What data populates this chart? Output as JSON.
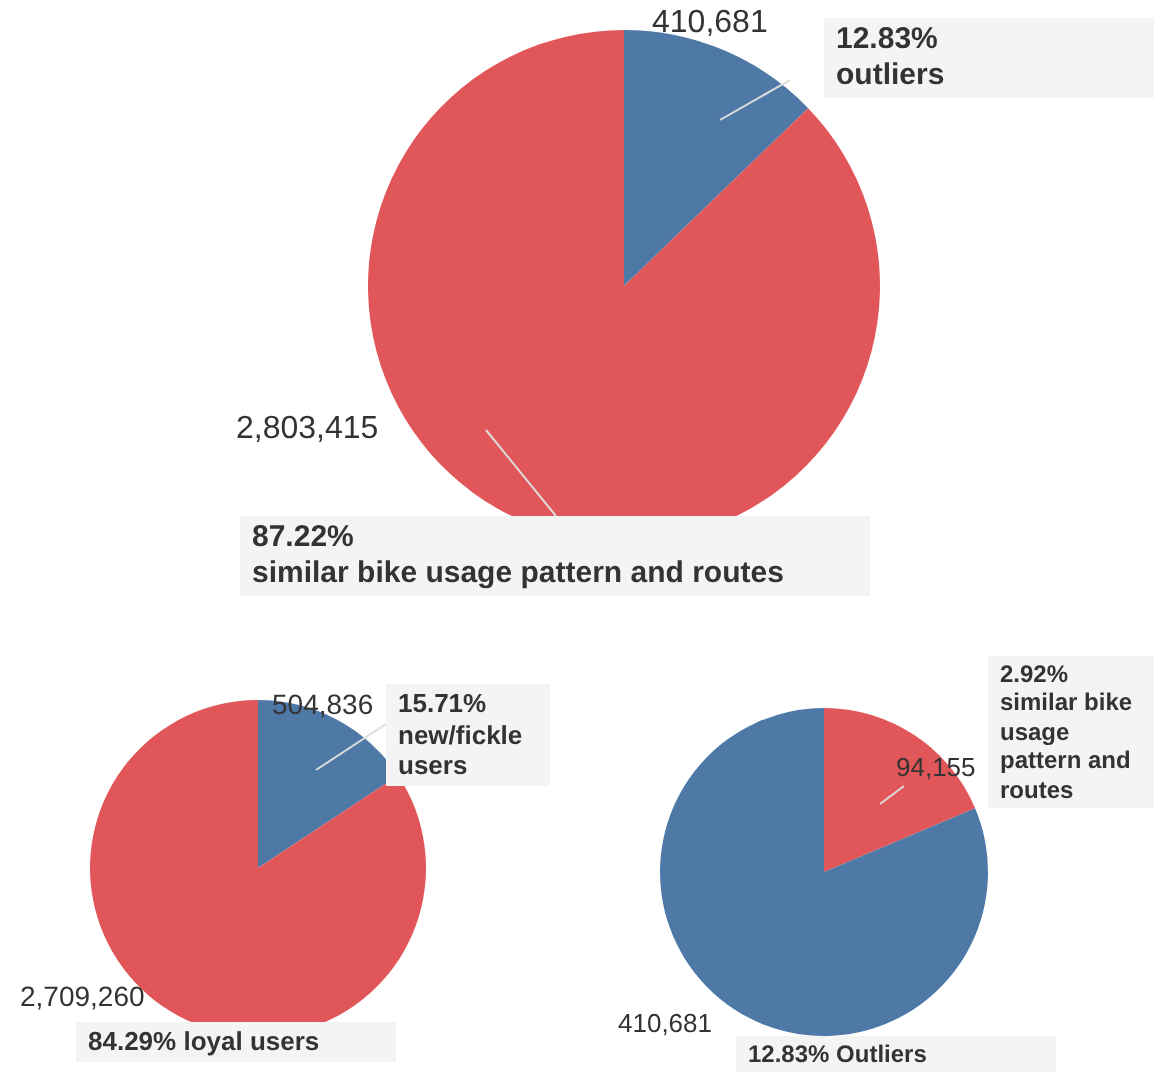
{
  "chart_data": [
    {
      "type": "pie",
      "categories": [
        "outliers",
        "similar bike usage pattern and routes"
      ],
      "values": [
        410681,
        2803415
      ],
      "colors": [
        "#4e79a7",
        "#e15759"
      ],
      "value_labels": [
        "410,681",
        "2,803,415"
      ],
      "annotations": [
        "12.83%",
        "87.22%"
      ]
    },
    {
      "type": "pie",
      "categories": [
        "new/fickle users",
        "loyal users"
      ],
      "values": [
        504836,
        2709260
      ],
      "colors": [
        "#4e79a7",
        "#e15759"
      ],
      "value_labels": [
        "504,836",
        "2,709,260"
      ],
      "annotations": [
        "15.71%",
        "84.29%"
      ]
    },
    {
      "type": "pie",
      "categories": [
        "similar bike usage pattern and routes",
        "Outliers"
      ],
      "values": [
        94155,
        410681
      ],
      "colors": [
        "#e15759",
        "#4e79a7"
      ],
      "value_labels": [
        "94,155",
        "410,681"
      ],
      "annotations": [
        "2.92%",
        "12.83%"
      ]
    }
  ]
}
